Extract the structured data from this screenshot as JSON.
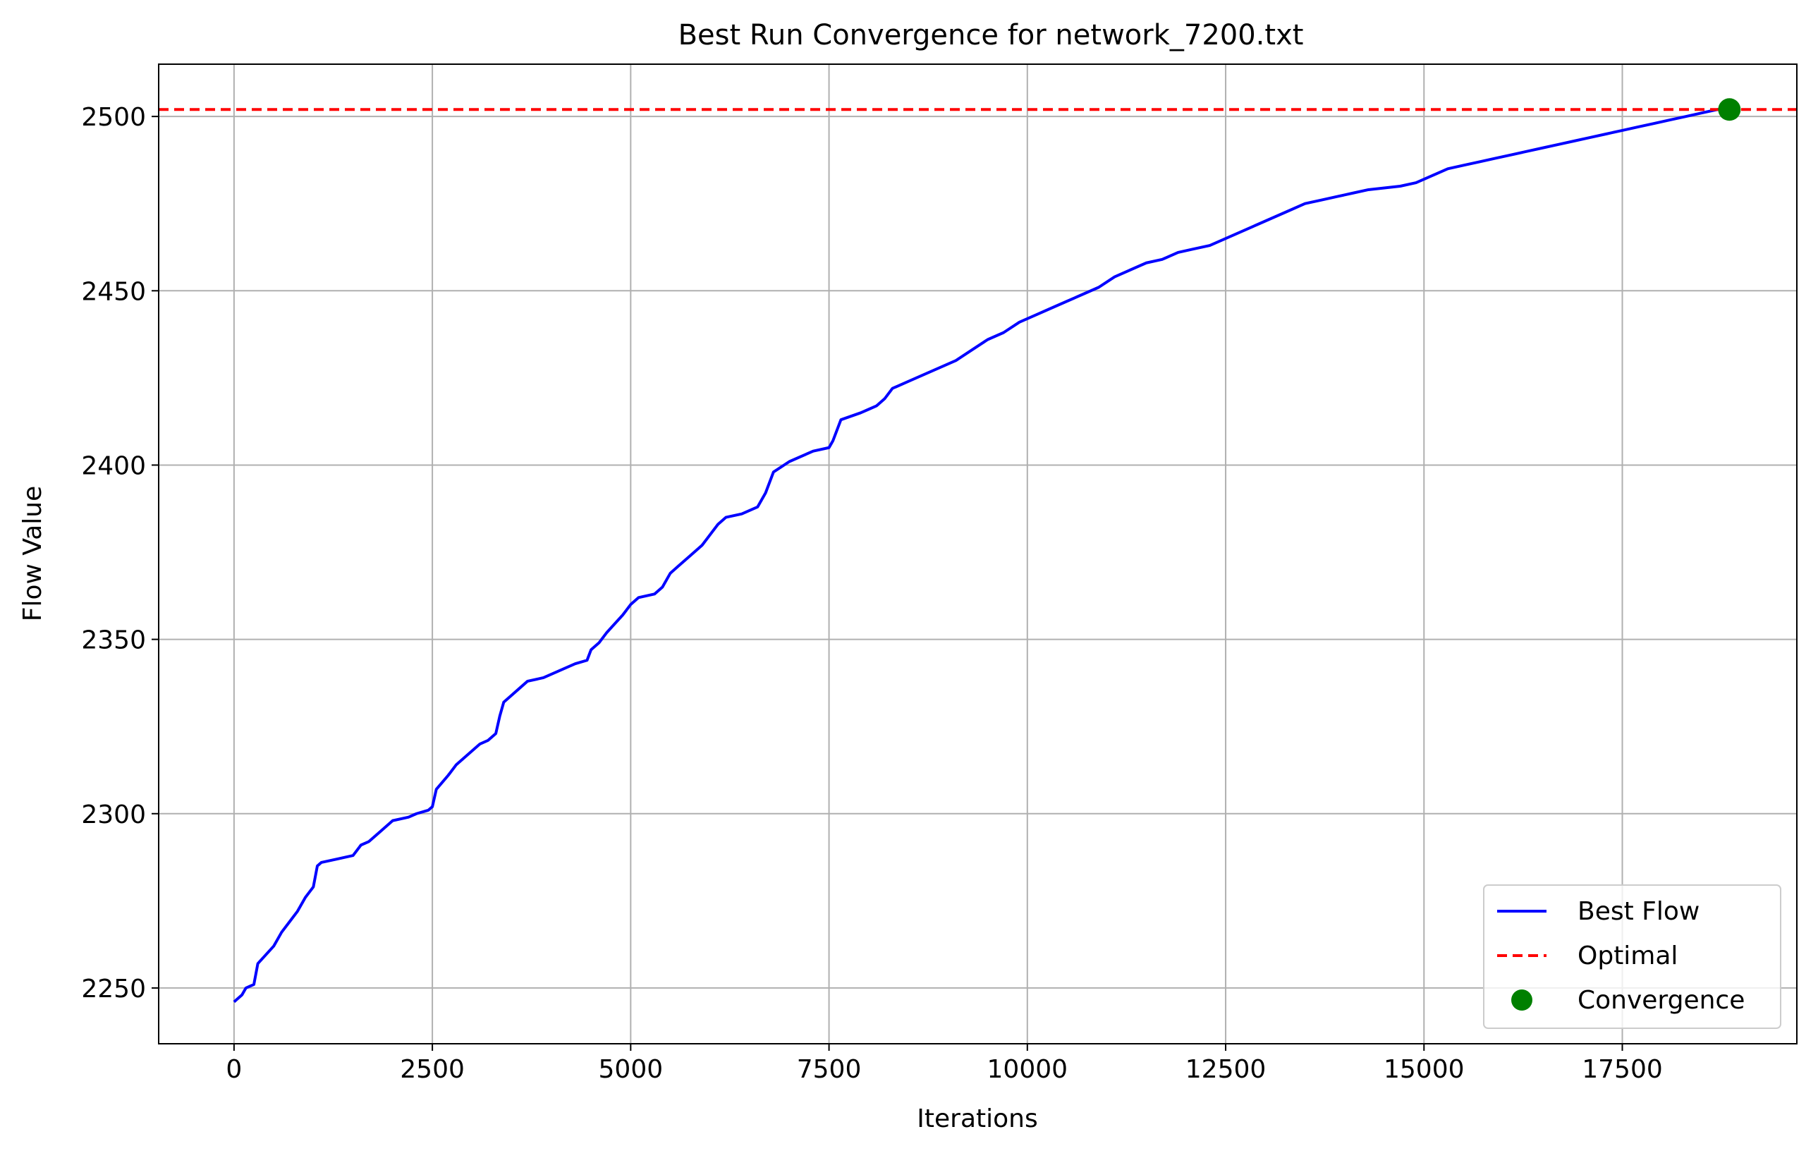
{
  "chart_data": {
    "type": "line",
    "title": "Best Run Convergence for network_7200.txt",
    "xlabel": "Iterations",
    "ylabel": "Flow Value",
    "xlim": [
      -950,
      19700
    ],
    "ylim": [
      2234,
      2515
    ],
    "xticks": [
      0,
      2500,
      5000,
      7500,
      10000,
      12500,
      15000,
      17500
    ],
    "xtick_labels": [
      "0",
      "2500",
      "5000",
      "7500",
      "10000",
      "12500",
      "15000",
      "17500"
    ],
    "yticks": [
      2250,
      2300,
      2350,
      2400,
      2450,
      2500
    ],
    "ytick_labels": [
      "2250",
      "2300",
      "2350",
      "2400",
      "2450",
      "2500"
    ],
    "grid": true,
    "legend_position": "lower right",
    "series": [
      {
        "name": "Best Flow",
        "style": "solid",
        "color": "#0000ff",
        "x": [
          0,
          100,
          150,
          250,
          300,
          500,
          600,
          700,
          800,
          900,
          1000,
          1050,
          1100,
          1300,
          1500,
          1600,
          1700,
          1850,
          2000,
          2200,
          2300,
          2450,
          2500,
          2550,
          2700,
          2800,
          2900,
          3000,
          3100,
          3200,
          3300,
          3350,
          3400,
          3500,
          3600,
          3700,
          3900,
          4100,
          4300,
          4450,
          4500,
          4600,
          4700,
          4900,
          5000,
          5100,
          5300,
          5400,
          5500,
          5600,
          5750,
          5900,
          6000,
          6100,
          6200,
          6400,
          6600,
          6700,
          6800,
          7000,
          7300,
          7500,
          7550,
          7650,
          7900,
          8000,
          8100,
          8200,
          8300,
          8500,
          8700,
          8900,
          9100,
          9300,
          9500,
          9700,
          9900,
          10100,
          10300,
          10500,
          10700,
          10900,
          11100,
          11300,
          11500,
          11700,
          11900,
          12100,
          12300,
          12500,
          12700,
          12900,
          13100,
          13300,
          13500,
          13700,
          13900,
          14100,
          14300,
          14500,
          14700,
          14900,
          15100,
          15300,
          15500,
          15700,
          15900,
          16100,
          16300,
          16500,
          16700,
          16900,
          17100,
          17300,
          17500,
          17700,
          17900,
          18100,
          18300,
          18500,
          18700,
          18850
        ],
        "y": [
          2246,
          2248,
          2250,
          2251,
          2257,
          2262,
          2266,
          2269,
          2272,
          2276,
          2279,
          2285,
          2286,
          2287,
          2288,
          2291,
          2292,
          2295,
          2298,
          2299,
          2300,
          2301,
          2302,
          2307,
          2311,
          2314,
          2316,
          2318,
          2320,
          2321,
          2323,
          2328,
          2332,
          2334,
          2336,
          2338,
          2339,
          2341,
          2343,
          2344,
          2347,
          2349,
          2352,
          2357,
          2360,
          2362,
          2363,
          2365,
          2369,
          2371,
          2374,
          2377,
          2380,
          2383,
          2385,
          2386,
          2388,
          2392,
          2398,
          2401,
          2404,
          2405,
          2407,
          2413,
          2415,
          2416,
          2417,
          2419,
          2422,
          2424,
          2426,
          2428,
          2430,
          2433,
          2436,
          2438,
          2441,
          2443,
          2445,
          2447,
          2449,
          2451,
          2454,
          2456,
          2458,
          2459,
          2461,
          2462,
          2463,
          2465,
          2467,
          2469,
          2471,
          2473,
          2475,
          2476,
          2477,
          2478,
          2479,
          2479.5,
          2480,
          2481,
          2483,
          2485,
          2486,
          2487,
          2488,
          2489,
          2490,
          2491,
          2492,
          2493,
          2494,
          2495,
          2496,
          2497,
          2498,
          2499,
          2500,
          2501,
          2502,
          2502
        ]
      },
      {
        "name": "Optimal",
        "style": "dashed",
        "color": "#ff0000",
        "y": 2502
      },
      {
        "name": "Convergence",
        "style": "marker",
        "color": "#008000",
        "x": [
          18850
        ],
        "y": [
          2502
        ]
      }
    ]
  }
}
